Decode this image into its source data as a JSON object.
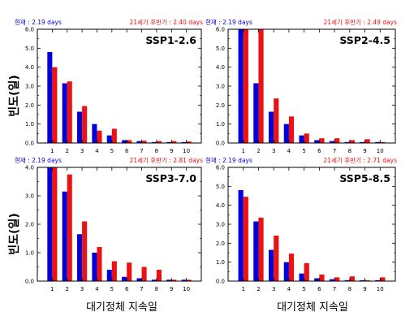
{
  "labels": {
    "ylabel": "빈도(일)",
    "xlabel": "대기정체 지속일",
    "current_prefix": "현재",
    "future_prefix": "21세기 후반기"
  },
  "colors": {
    "current": "#0000dd",
    "future": "#ee1111",
    "axis": "#000000"
  },
  "chart_data": [
    {
      "type": "bar",
      "title": "SSP1-2.6",
      "current_label": "현재 : 2.19 days",
      "future_label": "21세기 후반기 : 2.40 days",
      "categories": [
        "1",
        "2",
        "3",
        "4",
        "5",
        "6",
        "7",
        "8",
        "9",
        "10"
      ],
      "ylim": [
        0,
        6.0
      ],
      "yticks": [
        "0.0",
        "1.0",
        "2.0",
        "3.0",
        "4.0",
        "5.0",
        "6.0"
      ],
      "series": [
        {
          "name": "현재",
          "values": [
            4.8,
            3.15,
            1.65,
            1.0,
            0.4,
            0.15,
            0.1,
            0.05,
            0.05,
            0.05
          ]
        },
        {
          "name": "21세기 후반기",
          "values": [
            4.0,
            3.25,
            1.95,
            0.65,
            0.75,
            0.15,
            0.12,
            0.1,
            0.1,
            0.08
          ]
        }
      ]
    },
    {
      "type": "bar",
      "title": "SSP2-4.5",
      "current_label": "현재 : 2.19 days",
      "future_label": "21세기 후반기 : 2.49 days",
      "categories": [
        "1",
        "2",
        "3",
        "4",
        "5",
        "6",
        "7",
        "8",
        "9",
        "10"
      ],
      "ylim": [
        0,
        6.0
      ],
      "yticks": [
        "0.0",
        "1.0",
        "2.0",
        "3.0",
        "4.0",
        "5.0",
        "6.0"
      ],
      "series": [
        {
          "name": "현재",
          "values": [
            6.0,
            3.15,
            1.65,
            1.0,
            0.4,
            0.15,
            0.1,
            0.05,
            0.05,
            0.05
          ]
        },
        {
          "name": "21세기 후반기",
          "values": [
            6.0,
            6.0,
            2.35,
            1.4,
            0.5,
            0.25,
            0.25,
            0.15,
            0.2,
            0.05
          ]
        }
      ]
    },
    {
      "type": "bar",
      "title": "SSP3-7.0",
      "current_label": "현재 : 2.19 days",
      "future_label": "21세기 후반기 : 2.81 days",
      "categories": [
        "1",
        "2",
        "3",
        "4",
        "5",
        "6",
        "7",
        "8",
        "9",
        "10"
      ],
      "ylim": [
        0,
        4.0
      ],
      "yticks": [
        "0.0",
        "1.0",
        "2.0",
        "3.0",
        "4.0"
      ],
      "series": [
        {
          "name": "현재",
          "values": [
            4.0,
            3.15,
            1.65,
            1.0,
            0.4,
            0.15,
            0.1,
            0.05,
            0.05,
            0.05
          ]
        },
        {
          "name": "21세기 후반기",
          "values": [
            4.0,
            3.75,
            2.1,
            1.2,
            0.7,
            0.65,
            0.5,
            0.4,
            0.05,
            0.05
          ]
        }
      ]
    },
    {
      "type": "bar",
      "title": "SSP5-8.5",
      "current_label": "현재 : 2.19 days",
      "future_label": "21세기 후반기 : 2.71 days",
      "categories": [
        "1",
        "2",
        "3",
        "4",
        "5",
        "6",
        "7",
        "8",
        "9",
        "10"
      ],
      "ylim": [
        0,
        6.0
      ],
      "yticks": [
        "0.0",
        "1.0",
        "2.0",
        "3.0",
        "4.0",
        "5.0",
        "6.0"
      ],
      "series": [
        {
          "name": "현재",
          "values": [
            4.8,
            3.15,
            1.65,
            1.0,
            0.4,
            0.15,
            0.1,
            0.05,
            0.05,
            0.05
          ]
        },
        {
          "name": "21세기 후반기",
          "values": [
            4.45,
            3.35,
            2.4,
            1.45,
            0.95,
            0.35,
            0.2,
            0.25,
            0.05,
            0.2
          ]
        }
      ]
    }
  ]
}
